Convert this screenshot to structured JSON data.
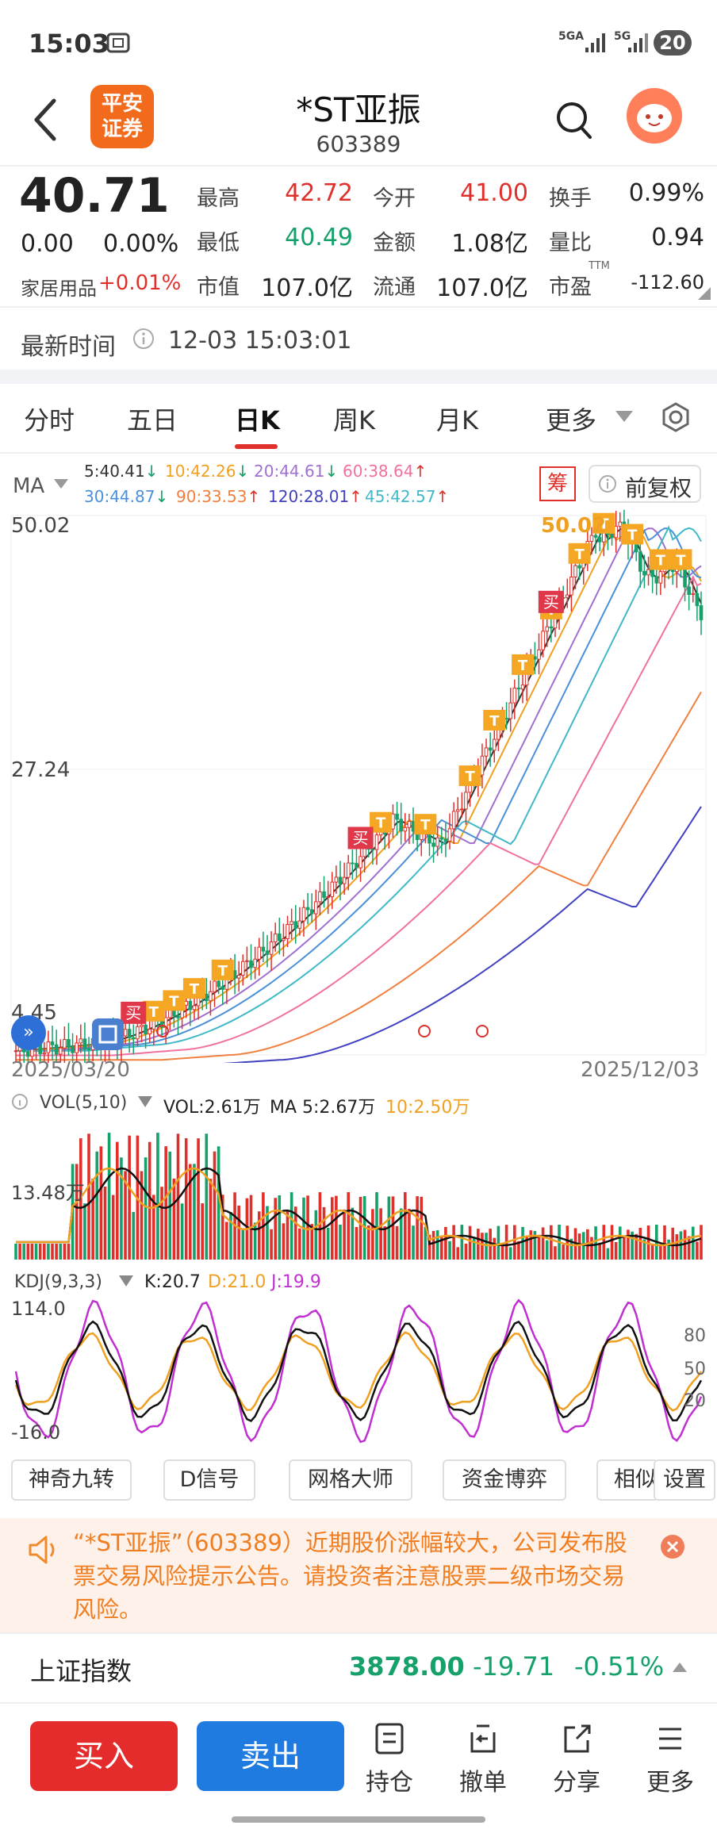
{
  "status": {
    "time": "15:03",
    "signal_a": "5GA",
    "signal_b": "5G",
    "battery": "20"
  },
  "header": {
    "title": "*ST亚振",
    "code": "603389",
    "logo_line1": "平安",
    "logo_line2": "证券"
  },
  "quote": {
    "price": "40.71",
    "change": "0.00",
    "change_pct": "0.00%",
    "sector": "家居用品",
    "sector_pct": "+0.01%",
    "fields": {
      "high_label": "最高",
      "high": "42.72",
      "low_label": "最低",
      "low": "40.49",
      "cap_label": "市值",
      "cap": "107.0亿",
      "open_label": "今开",
      "open": "41.00",
      "amount_label": "金额",
      "amount": "1.08亿",
      "float_label": "流通",
      "float": "107.0亿",
      "turnover_label": "换手",
      "turnover": "0.99%",
      "ratio_label": "量比",
      "ratio": "0.94",
      "pe_label": "市盈",
      "pe_sup": "TTM",
      "pe": "-112.60"
    }
  },
  "update": {
    "label": "最新时间",
    "time": "12-03 15:03:01"
  },
  "tabs": [
    "分时",
    "五日",
    "日K",
    "周K",
    "月K",
    "更多"
  ],
  "active_tab": "日K",
  "ma": {
    "label": "MA",
    "items": [
      {
        "text": "5:40.41",
        "arrow": "↓",
        "color": "#333333"
      },
      {
        "text": "10:42.26",
        "arrow": "↓",
        "color": "#f0a020"
      },
      {
        "text": "20:44.61",
        "arrow": "↓",
        "color": "#a070d0"
      },
      {
        "text": "60:38.64",
        "arrow": "↑",
        "color": "#f070a0"
      },
      {
        "text": "30:44.87",
        "arrow": "↓",
        "color": "#4a90d9"
      },
      {
        "text": "90:33.53",
        "arrow": "↑",
        "color": "#f08040"
      },
      {
        "text": "120:28.01",
        "arrow": "↑",
        "color": "#4040c0"
      },
      {
        "text": "45:42.57",
        "arrow": "↑",
        "color": "#40b8c8"
      }
    ],
    "chou": "筹",
    "fuquan": "前复权"
  },
  "kchart": {
    "y_top": "50.02",
    "y_mid": "27.24",
    "y_low": "4.45",
    "peak_label": "50.02",
    "date_start": "2025/03/20",
    "date_end": "2025/12/03",
    "buy": "买",
    "t": "T"
  },
  "vol": {
    "title": "VOL(5,10)",
    "vol": "VOL:2.61万",
    "ma5": "MA 5:2.67万",
    "ma10": "10:2.50万",
    "y": "13.48万"
  },
  "kdj": {
    "title": "KDJ(9,3,3)",
    "k": "K:20.7",
    "d": "D:21.0",
    "j": "J:19.9",
    "y_top": "114.0",
    "y_bottom": "-16.0",
    "r80": "80",
    "r50": "50",
    "r20": "20"
  },
  "tools": [
    "神奇九转",
    "D信号",
    "网格大师",
    "资金博弈",
    "相似",
    "设置"
  ],
  "notice": "“*ST亚振”（603389）近期股价涨幅较大，公司发布股票交易风险提示公告。请投资者注意股票二级市场交易风险。",
  "index": {
    "name": "上证指数",
    "value": "3878.00",
    "change": "-19.71",
    "pct": "-0.51%"
  },
  "bottom": {
    "buy": "买入",
    "sell": "卖出",
    "hold": "持仓",
    "cancel": "撤单",
    "share": "分享",
    "more": "更多"
  },
  "colors": {
    "red": "#e0302b",
    "green": "#16a06a",
    "blue": "#1a73e8",
    "orange": "#f5a623"
  }
}
